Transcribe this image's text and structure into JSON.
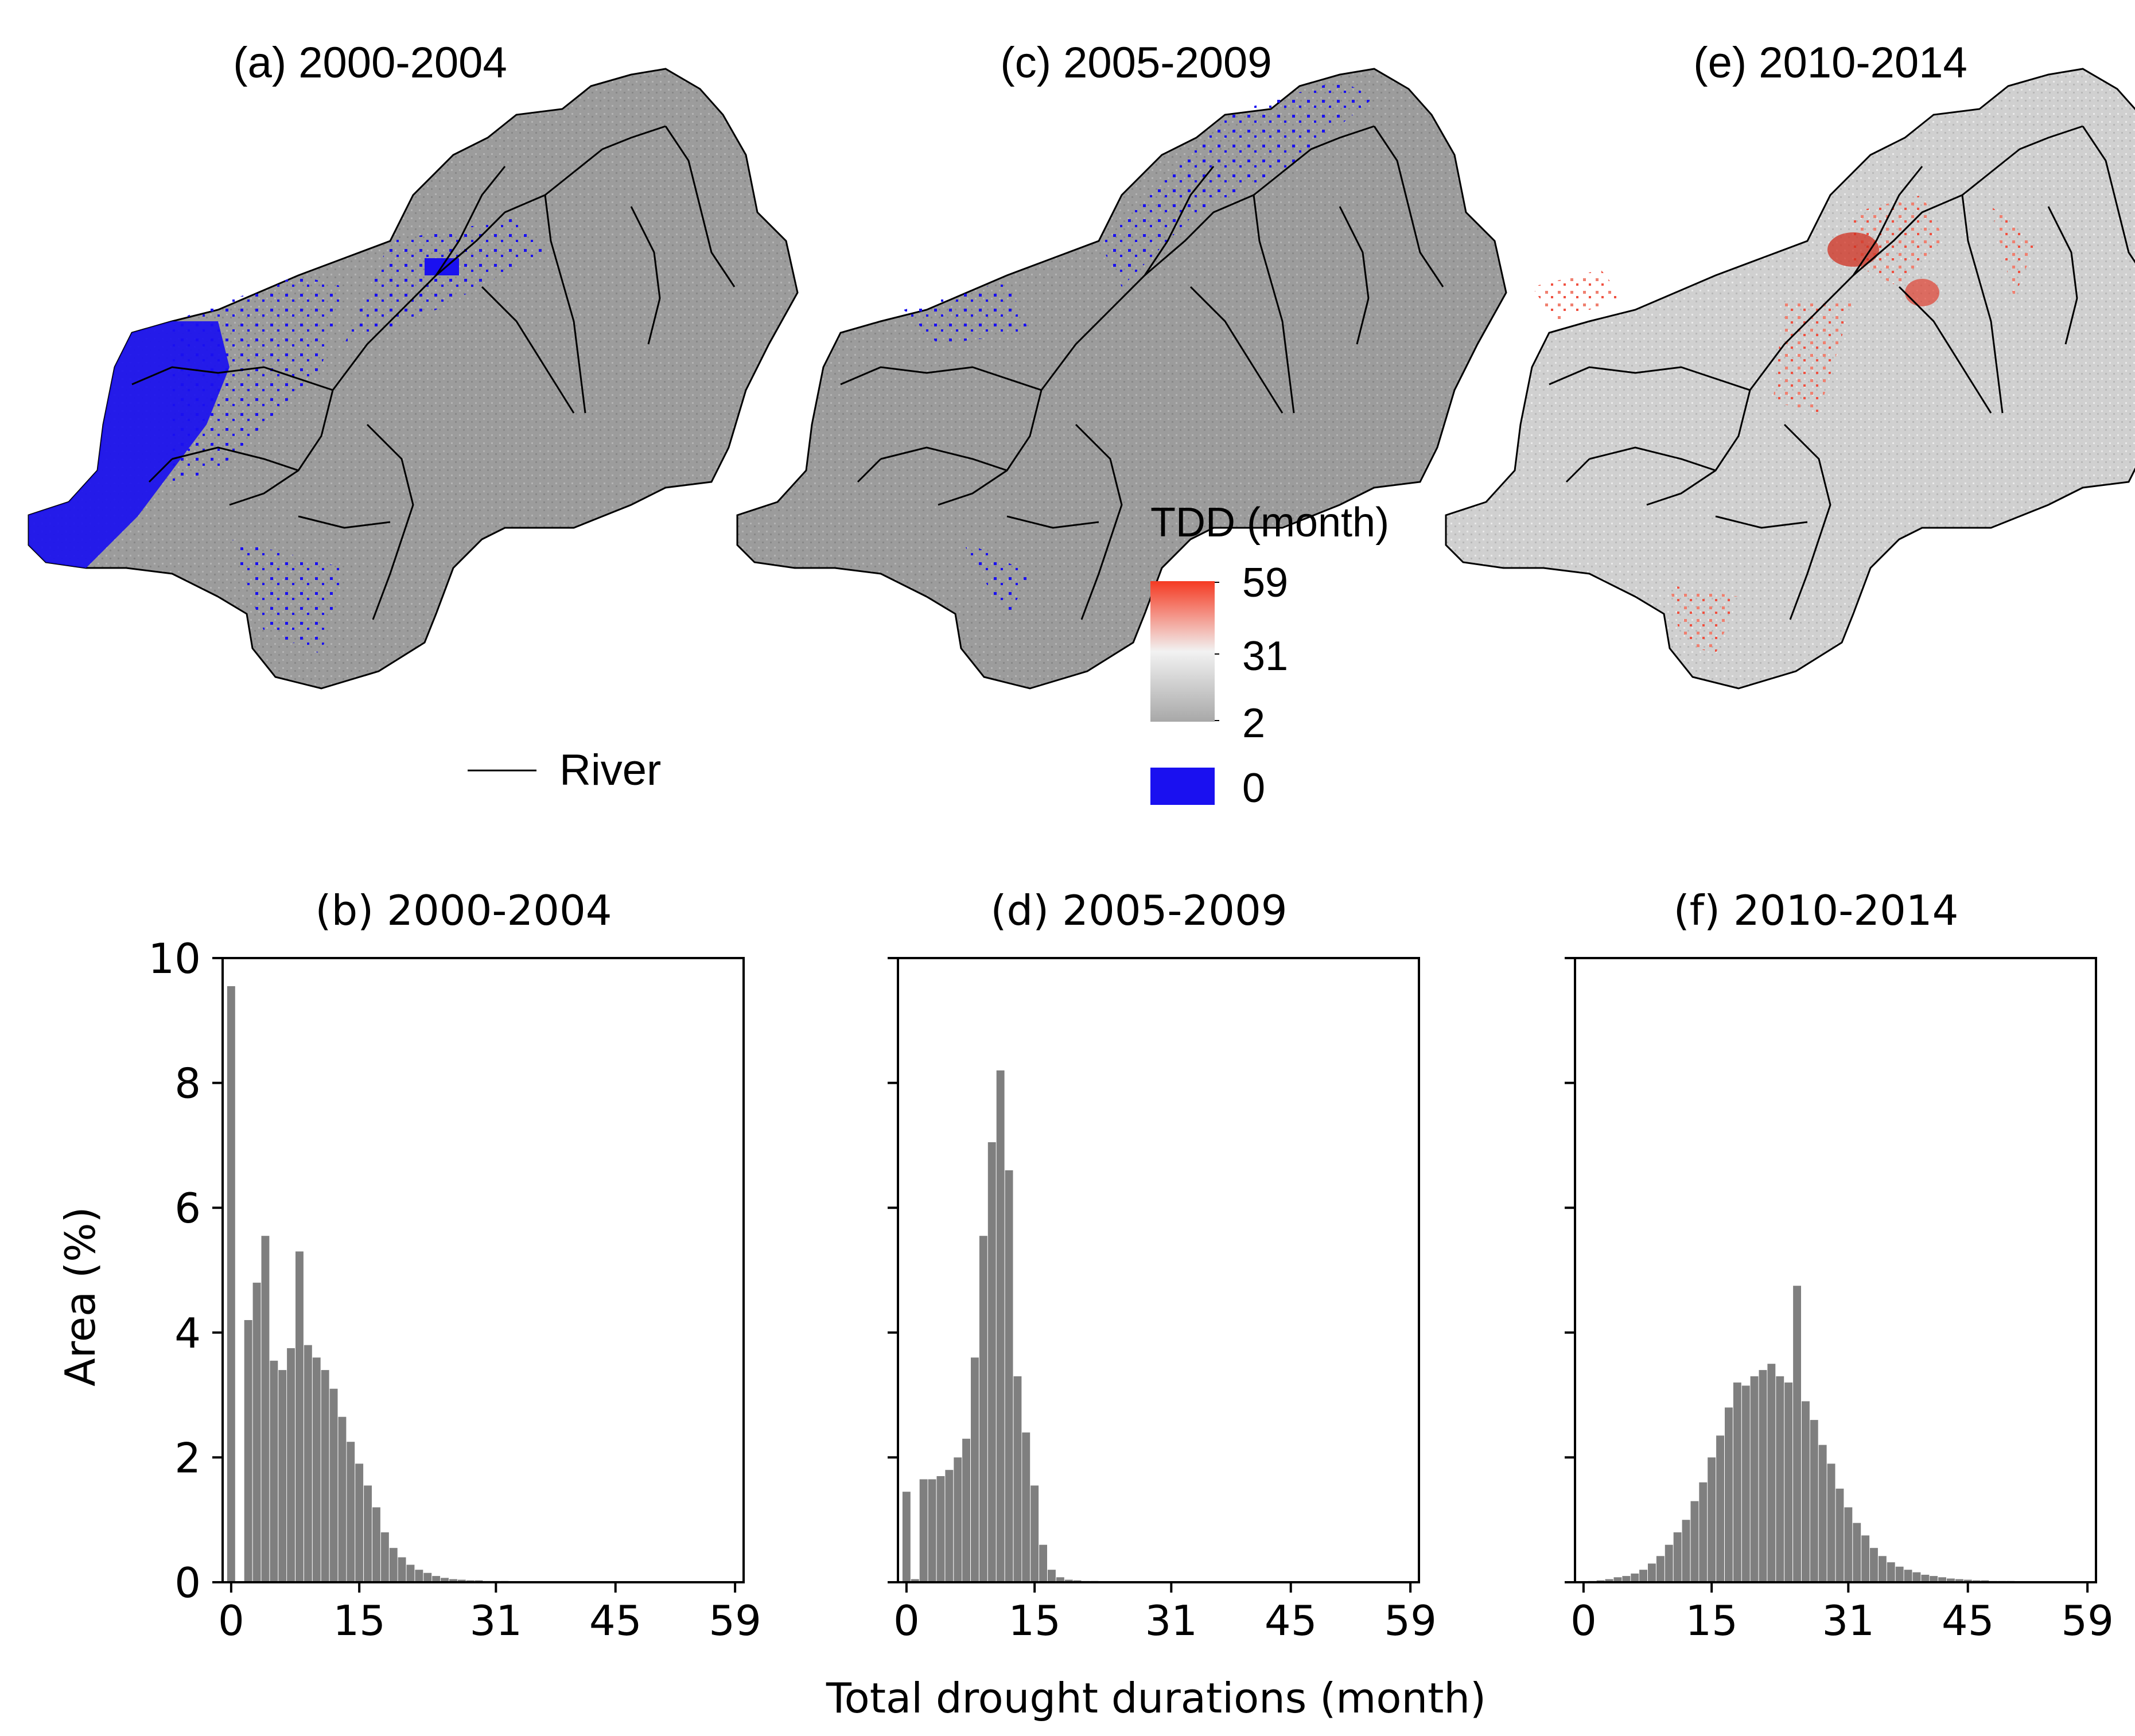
{
  "colors": {
    "bar": "#7f7f7f",
    "map_base": "#9c9c9c",
    "no_drought": "#1a10f0",
    "high_tdd": "#f03020",
    "river": "#000000",
    "colorbar_low": "#a8a8a8",
    "colorbar_mid": "#f2f2f2",
    "colorbar_high": "#f53a22"
  },
  "legend": {
    "river_label": "River",
    "colorbar_title": "TDD (month)",
    "colorbar_ticks": [
      "59",
      "31",
      "2"
    ],
    "zero_label": "0"
  },
  "x_label": "Total drought durations (month)",
  "chart_data": [
    {
      "type": "map",
      "title": "(a)  2000-2004",
      "variable": "TDD (month)",
      "note": "basin map; blue cells = 0 months concentrated in western part"
    },
    {
      "type": "map",
      "title": "(c)  2005-2009",
      "variable": "TDD (month)",
      "note": "basin map; sparse blue cells along northern edge"
    },
    {
      "type": "map",
      "title": "(e)  2010-2014",
      "variable": "TDD (month)",
      "note": "basin map; light grey with red patches in central and north areas"
    },
    {
      "type": "bar",
      "title": "(b) 2000-2004",
      "xlabel": "Total drought durations (month)",
      "ylabel": "Area (%)",
      "xlim": [
        -1,
        60
      ],
      "ylim": [
        0,
        10
      ],
      "xticks": [
        0,
        15,
        31,
        45,
        59
      ],
      "yticks": [
        0,
        2,
        4,
        6,
        8,
        10
      ],
      "x": [
        0,
        1,
        2,
        3,
        4,
        5,
        6,
        7,
        8,
        9,
        10,
        11,
        12,
        13,
        14,
        15,
        16,
        17,
        18,
        19,
        20,
        21,
        22,
        23,
        24,
        25,
        26,
        27,
        28,
        29,
        30,
        31,
        32,
        33,
        34,
        35,
        36,
        37,
        38,
        39,
        40,
        41,
        42,
        43,
        44,
        45,
        46,
        47,
        48,
        49,
        50,
        51,
        52,
        53,
        54,
        55,
        56,
        57,
        58,
        59
      ],
      "values": [
        9.55,
        0,
        4.2,
        4.8,
        5.55,
        3.55,
        3.4,
        3.75,
        5.3,
        3.8,
        3.6,
        3.4,
        3.1,
        2.65,
        2.25,
        1.9,
        1.55,
        1.2,
        0.8,
        0.55,
        0.4,
        0.28,
        0.2,
        0.15,
        0.1,
        0.07,
        0.05,
        0.04,
        0.03,
        0.03,
        0.02,
        0.02,
        0.02,
        0.01,
        0.01,
        0.01,
        0.01,
        0.01,
        0.01,
        0.01,
        0.01,
        0.01,
        0.01,
        0.01,
        0.01,
        0.01,
        0,
        0,
        0,
        0,
        0,
        0,
        0,
        0,
        0,
        0,
        0,
        0,
        0,
        0
      ]
    },
    {
      "type": "bar",
      "title": "(d) 2005-2009",
      "xlabel": "Total drought durations (month)",
      "ylabel": "",
      "xlim": [
        -1,
        60
      ],
      "ylim": [
        0,
        10
      ],
      "xticks": [
        0,
        15,
        31,
        45,
        59
      ],
      "yticks": [
        0,
        2,
        4,
        6,
        8,
        10
      ],
      "x": [
        0,
        1,
        2,
        3,
        4,
        5,
        6,
        7,
        8,
        9,
        10,
        11,
        12,
        13,
        14,
        15,
        16,
        17,
        18,
        19,
        20,
        21,
        22,
        23,
        24,
        25,
        26,
        27,
        28,
        29,
        30,
        31,
        32,
        33,
        34,
        35,
        36,
        37,
        38,
        39,
        40,
        41,
        42,
        43,
        44,
        45,
        46,
        47,
        48,
        49,
        50,
        51,
        52,
        53,
        54,
        55,
        56,
        57,
        58,
        59
      ],
      "values": [
        1.45,
        0.05,
        1.65,
        1.65,
        1.7,
        1.8,
        2.0,
        2.3,
        3.6,
        5.55,
        7.05,
        8.2,
        6.6,
        3.3,
        2.4,
        1.55,
        0.6,
        0.2,
        0.08,
        0.04,
        0.03,
        0.02,
        0.02,
        0.01,
        0.01,
        0.01,
        0.01,
        0.01,
        0.01,
        0.01,
        0.01,
        0.01,
        0.01,
        0.01,
        0.01,
        0.01,
        0.01,
        0.01,
        0.01,
        0.01,
        0.01,
        0.01,
        0.01,
        0.01,
        0.01,
        0.01,
        0.01,
        0.01,
        0,
        0,
        0,
        0,
        0,
        0,
        0,
        0,
        0,
        0,
        0,
        0
      ]
    },
    {
      "type": "bar",
      "title": "(f) 2010-2014",
      "xlabel": "Total drought durations (month)",
      "ylabel": "",
      "xlim": [
        -1,
        60
      ],
      "ylim": [
        0,
        10
      ],
      "xticks": [
        0,
        15,
        31,
        45,
        59
      ],
      "yticks": [
        0,
        2,
        4,
        6,
        8,
        10
      ],
      "x": [
        0,
        1,
        2,
        3,
        4,
        5,
        6,
        7,
        8,
        9,
        10,
        11,
        12,
        13,
        14,
        15,
        16,
        17,
        18,
        19,
        20,
        21,
        22,
        23,
        24,
        25,
        26,
        27,
        28,
        29,
        30,
        31,
        32,
        33,
        34,
        35,
        36,
        37,
        38,
        39,
        40,
        41,
        42,
        43,
        44,
        45,
        46,
        47,
        48,
        49,
        50,
        51,
        52,
        53,
        54,
        55,
        56,
        57,
        58,
        59
      ],
      "values": [
        0,
        0.02,
        0.03,
        0.05,
        0.08,
        0.1,
        0.14,
        0.2,
        0.3,
        0.42,
        0.6,
        0.8,
        1.0,
        1.3,
        1.6,
        2.0,
        2.35,
        2.8,
        3.2,
        3.15,
        3.3,
        3.4,
        3.5,
        3.3,
        3.2,
        4.75,
        2.9,
        2.6,
        2.2,
        1.9,
        1.5,
        1.2,
        0.95,
        0.75,
        0.55,
        0.42,
        0.32,
        0.25,
        0.2,
        0.16,
        0.12,
        0.1,
        0.08,
        0.06,
        0.05,
        0.04,
        0.03,
        0.03,
        0.02,
        0.02,
        0.02,
        0.01,
        0.01,
        0.01,
        0.01,
        0.01,
        0,
        0,
        0,
        0
      ]
    }
  ]
}
